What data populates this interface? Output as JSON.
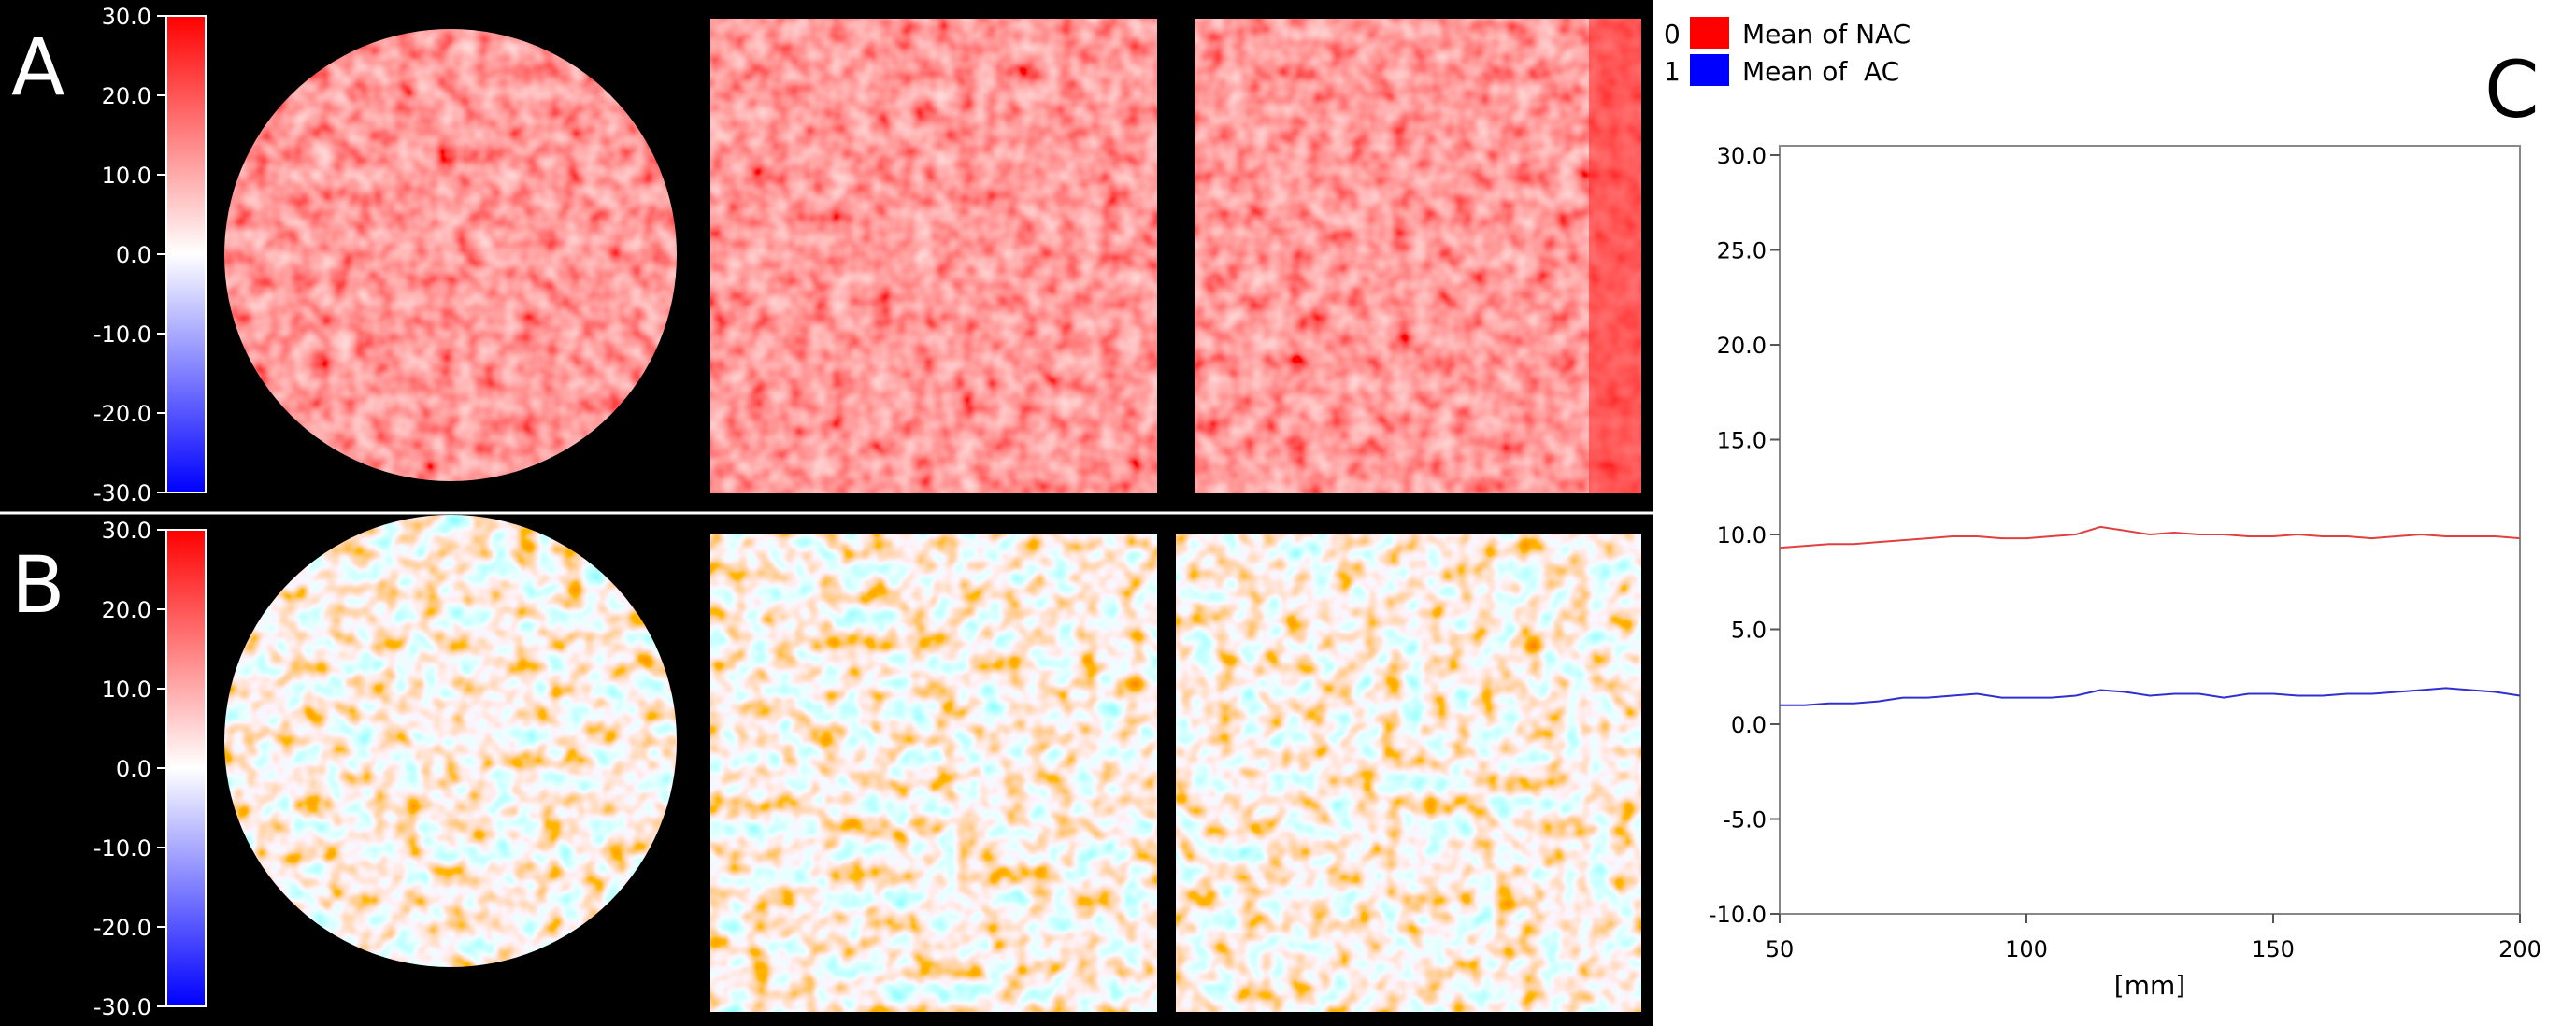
{
  "panels": {
    "a_label": "A",
    "b_label": "B",
    "c_label": "C"
  },
  "colorbar": {
    "ticks": [
      "30.0",
      "20.0",
      "10.0",
      "0.0",
      "-10.0",
      "-20.0",
      "-30.0"
    ],
    "range": [
      -30,
      30
    ],
    "colors": {
      "max": "#ff0000",
      "mid": "#ffffff",
      "min": "#0000ff"
    }
  },
  "chart_data": {
    "type": "line",
    "xlabel": "[mm]",
    "ylabel": "",
    "xlim": [
      50,
      200
    ],
    "ylim": [
      -10,
      30
    ],
    "xticks": [
      "50",
      "100",
      "150",
      "200"
    ],
    "yticks": [
      "30.0",
      "25.0",
      "20.0",
      "15.0",
      "10.0",
      "5.0",
      "0.0",
      "-5.0",
      "-10.0"
    ],
    "legend_position": "top-left",
    "series": [
      {
        "name": "Mean of NAC",
        "legend_index": "0",
        "color": "#e04040",
        "x": [
          50,
          55,
          60,
          65,
          70,
          75,
          80,
          85,
          90,
          95,
          100,
          105,
          110,
          115,
          120,
          125,
          130,
          135,
          140,
          145,
          150,
          155,
          160,
          165,
          170,
          175,
          180,
          185,
          190,
          195,
          200
        ],
        "y": [
          9.3,
          9.4,
          9.5,
          9.5,
          9.6,
          9.7,
          9.8,
          9.9,
          9.9,
          9.8,
          9.8,
          9.9,
          10.0,
          10.4,
          10.2,
          10.0,
          10.1,
          10.0,
          10.0,
          9.9,
          9.9,
          10.0,
          9.9,
          9.9,
          9.8,
          9.9,
          10.0,
          9.9,
          9.9,
          9.9,
          9.8
        ]
      },
      {
        "name": "Mean of  AC",
        "legend_index": "1",
        "color": "#3030d0",
        "x": [
          50,
          55,
          60,
          65,
          70,
          75,
          80,
          85,
          90,
          95,
          100,
          105,
          110,
          115,
          120,
          125,
          130,
          135,
          140,
          145,
          150,
          155,
          160,
          165,
          170,
          175,
          180,
          185,
          190,
          195,
          200
        ],
        "y": [
          1.0,
          1.0,
          1.1,
          1.1,
          1.2,
          1.4,
          1.4,
          1.5,
          1.6,
          1.4,
          1.4,
          1.4,
          1.5,
          1.8,
          1.7,
          1.5,
          1.6,
          1.6,
          1.4,
          1.6,
          1.6,
          1.5,
          1.5,
          1.6,
          1.6,
          1.7,
          1.8,
          1.9,
          1.8,
          1.7,
          1.5
        ]
      }
    ]
  }
}
